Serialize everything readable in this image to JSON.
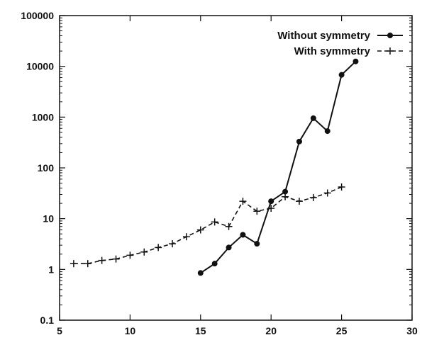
{
  "chart_data": {
    "type": "line",
    "title": "",
    "xlabel": "",
    "ylabel": "",
    "xlim": [
      5,
      30
    ],
    "ylim": [
      0.1,
      100000
    ],
    "yscale": "log",
    "grid": false,
    "legend_position": "top-right",
    "x_ticks": [
      {
        "value": 5,
        "label": "5"
      },
      {
        "value": 10,
        "label": "10"
      },
      {
        "value": 15,
        "label": "15"
      },
      {
        "value": 20,
        "label": "20"
      },
      {
        "value": 25,
        "label": "25"
      },
      {
        "value": 30,
        "label": "30"
      }
    ],
    "y_ticks": [
      {
        "value": 0.1,
        "label": "0.1"
      },
      {
        "value": 1,
        "label": "1"
      },
      {
        "value": 10,
        "label": "10"
      },
      {
        "value": 100,
        "label": "100"
      },
      {
        "value": 1000,
        "label": "1000"
      },
      {
        "value": 10000,
        "label": "10000"
      },
      {
        "value": 100000,
        "label": "100000"
      }
    ],
    "series": [
      {
        "name": "Without symmetry",
        "marker": "circle",
        "line_style": "solid",
        "x": [
          15,
          16,
          17,
          18,
          19,
          20,
          21,
          22,
          23,
          24,
          25,
          26
        ],
        "y": [
          0.85,
          1.3,
          2.7,
          4.8,
          3.2,
          22,
          34,
          330,
          950,
          530,
          6800,
          12500
        ]
      },
      {
        "name": "With symmetry",
        "marker": "plus",
        "line_style": "dashed",
        "x": [
          6,
          7,
          8,
          9,
          10,
          11,
          12,
          13,
          14,
          15,
          16,
          17,
          18,
          19,
          20,
          21,
          22,
          23,
          24,
          25
        ],
        "y": [
          1.3,
          1.3,
          1.5,
          1.6,
          1.9,
          2.2,
          2.7,
          3.2,
          4.4,
          6.0,
          8.6,
          7.0,
          22,
          14,
          16,
          27,
          22,
          26,
          32,
          42
        ]
      }
    ]
  }
}
